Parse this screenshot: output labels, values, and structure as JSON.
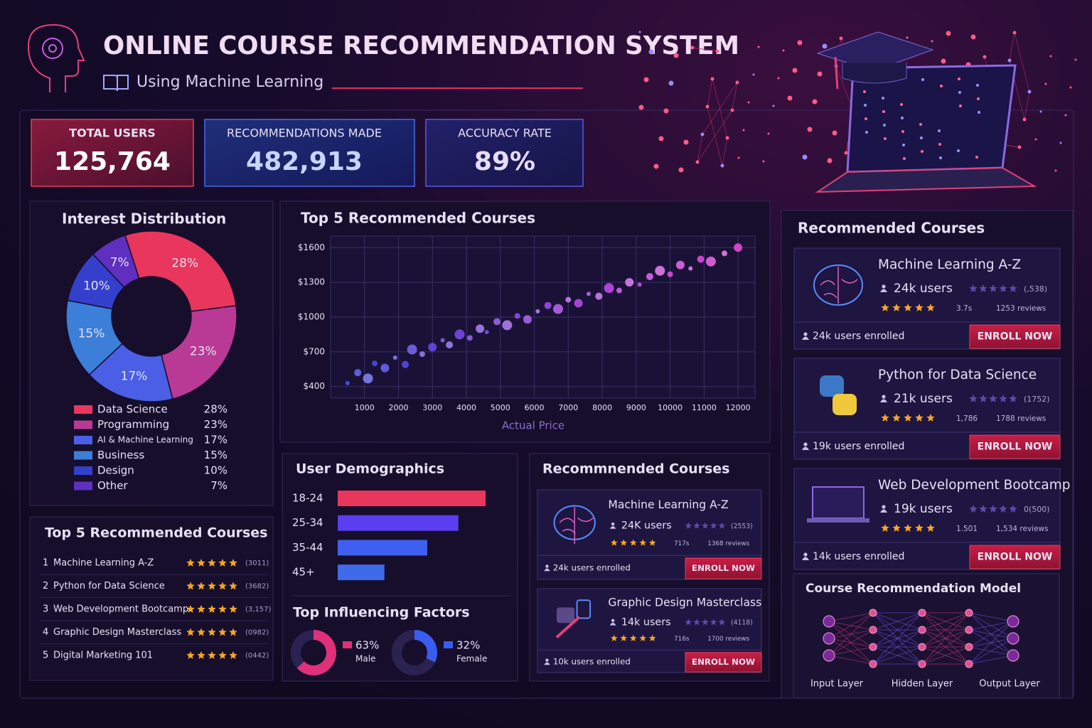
{
  "header": {
    "title": "ONLINE COURSE RECOMMENDATION SYSTEM",
    "subtitle": "Using Machine Learning"
  },
  "kpis": [
    {
      "label": "TOTAL USERS",
      "value": "125,764"
    },
    {
      "label": "RECOMMENDATIONS MADE",
      "value": "482,913"
    },
    {
      "label": "ACCURACY RATE",
      "value": "89%"
    }
  ],
  "chart_data": [
    {
      "type": "pie",
      "title": "Interest Distribution",
      "donut": true,
      "categories": [
        "Data Science",
        "Programming",
        "AI & Machine Learning",
        "Business",
        "Design",
        "Other"
      ],
      "values": [
        28,
        23,
        17,
        15,
        10,
        7
      ],
      "value_labels": [
        "28%",
        "23%",
        "17%",
        "15%",
        "10%",
        "7%"
      ],
      "colors": [
        "#e8365d",
        "#b83a94",
        "#4a5fe6",
        "#3b7fd9",
        "#3440cc",
        "#5f2fbf"
      ]
    },
    {
      "type": "scatter",
      "title": "Top 5 Recommended Courses",
      "x_label": "Actual Price",
      "grid": true,
      "color": "#8a6cff",
      "x": [
        500,
        800,
        1100,
        1300,
        1600,
        1900,
        2200,
        2400,
        2700,
        3000,
        3300,
        3500,
        3800,
        4100,
        4400,
        4600,
        4900,
        5200,
        5500,
        5800,
        6100,
        6400,
        6700,
        7000,
        7300,
        7600,
        7900,
        8200,
        8500,
        8800,
        9100,
        9400,
        9700,
        10000,
        10300,
        10600,
        10900,
        11200,
        11600,
        12000
      ],
      "y": [
        430,
        520,
        470,
        600,
        560,
        650,
        590,
        720,
        680,
        740,
        800,
        760,
        850,
        820,
        900,
        870,
        960,
        930,
        1010,
        980,
        1050,
        1100,
        1070,
        1150,
        1120,
        1200,
        1180,
        1250,
        1230,
        1300,
        1280,
        1350,
        1400,
        1370,
        1450,
        1420,
        1500,
        1480,
        1550,
        1600
      ],
      "xlim": [
        0,
        12500
      ],
      "ylim": [
        300,
        1700
      ],
      "xticks": [
        1000,
        2000,
        3000,
        4000,
        5000,
        6000,
        7000,
        8000,
        9000,
        10000,
        11000,
        12000
      ],
      "yticks": [
        {
          "value": 400,
          "label": "$400"
        },
        {
          "value": 700,
          "label": "$700"
        },
        {
          "value": 1000,
          "label": "$1000"
        },
        {
          "value": 1300,
          "label": "$1300"
        },
        {
          "value": 1600,
          "label": "$1600"
        }
      ]
    },
    {
      "type": "bar",
      "orientation": "horizontal",
      "title": "User Demographics",
      "categories": [
        "18-24",
        "25-34",
        "35-44",
        "45+"
      ],
      "values": [
        38,
        31,
        23,
        12
      ],
      "xlim": [
        0,
        40
      ],
      "colors": [
        "#e8365d",
        "#5a3ef0",
        "#3f5ff0",
        "#3f6ae8"
      ]
    },
    {
      "type": "gauge",
      "title": "Top Influencing Factors",
      "categories": [
        "Male",
        "Female"
      ],
      "values": [
        63,
        32
      ],
      "value_labels": [
        "63%",
        "32%"
      ],
      "colors": [
        "#e0307a",
        "#3b5cf0"
      ]
    }
  ],
  "top_courses": {
    "title": "Top 5 Recommended Courses",
    "items": [
      {
        "rank": "1",
        "name": "Machine Learning A-Z",
        "reviews": "(3011)"
      },
      {
        "rank": "2",
        "name": "Python for Data Science",
        "reviews": "(3682)"
      },
      {
        "rank": "3",
        "name": "Web Development Bootcamp",
        "reviews": "(3,157)"
      },
      {
        "rank": "4",
        "name": "Graphic Design Masterclass",
        "reviews": "(0982)"
      },
      {
        "rank": "5",
        "name": "Digital Marketing 101",
        "reviews": "(0442)"
      }
    ]
  },
  "featured": {
    "title": "Recommnended Courses",
    "button": "ENROLL NOW",
    "items": [
      {
        "name": "Machine Learning A-Z",
        "users": "24K users",
        "rating_count": "(2553)",
        "stat": "717s",
        "reviews": "1368 reviews",
        "enrolled": "24k users enrolled"
      },
      {
        "name": "Graphic Design Masterclass",
        "users": "14k users",
        "rating_count": "(4118)",
        "stat": "716s",
        "reviews": "1700 reviews",
        "enrolled": "10k users enrolled"
      }
    ]
  },
  "recommended": {
    "title": "Recommended Courses",
    "button": "ENROLL NOW",
    "items": [
      {
        "name": "Machine Learning A-Z",
        "users": "24k users",
        "rating_count": "(,538)",
        "stat": "3.7s",
        "reviews": "1253 reviews",
        "enrolled": "24k users enrolled"
      },
      {
        "name": "Python for Data Science",
        "users": "21k users",
        "rating_count": "(1752)",
        "stat": "1,786",
        "reviews": "1788 reviews",
        "enrolled": "19k users enrolled"
      },
      {
        "name": "Web Development Bootcamp",
        "users": "19k users",
        "rating_count": "0(500)",
        "stat": "1.501",
        "reviews": "1,534 reviews",
        "enrolled": "14k users enrolled"
      }
    ]
  },
  "model": {
    "title": "Course Recommendation Model",
    "layers": [
      "Input Layer",
      "Hidden Layer",
      "Output Layer"
    ]
  }
}
